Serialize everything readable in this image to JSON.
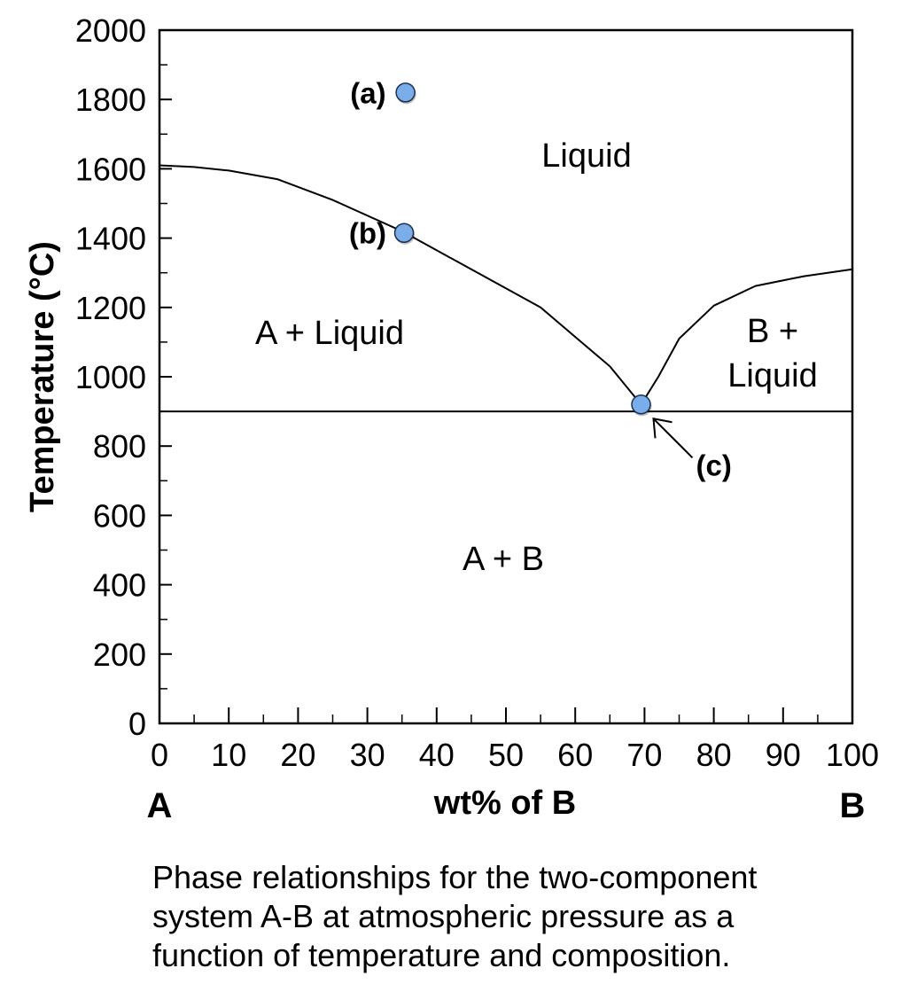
{
  "chart_data": {
    "type": "line",
    "xlabel": "wt% of B",
    "ylabel": "Temperature (°C)",
    "xlim": [
      0,
      100
    ],
    "ylim": [
      0,
      2000
    ],
    "x_ticks": [
      0,
      10,
      20,
      30,
      40,
      50,
      60,
      70,
      80,
      90,
      100
    ],
    "y_ticks": [
      0,
      200,
      400,
      600,
      800,
      1000,
      1200,
      1400,
      1600,
      1800,
      2000
    ],
    "x_minor_step": 5,
    "y_minor_step": 100,
    "end_labels": {
      "left": "A",
      "right": "B"
    },
    "series": [
      {
        "values": [
          [
            0,
            1610
          ],
          [
            5,
            1605
          ],
          [
            10,
            1595
          ],
          [
            17,
            1570
          ],
          [
            25,
            1510
          ],
          [
            35,
            1420
          ],
          [
            45,
            1310
          ],
          [
            55,
            1200
          ],
          [
            65,
            1030
          ],
          [
            69.5,
            920
          ]
        ]
      },
      {
        "values": [
          [
            69.5,
            920
          ],
          [
            72,
            1000
          ],
          [
            75,
            1110
          ],
          [
            80,
            1205
          ],
          [
            86,
            1262
          ],
          [
            93,
            1290
          ],
          [
            100,
            1310
          ]
        ]
      },
      {
        "values": [
          [
            0,
            900
          ],
          [
            100,
            900
          ]
        ]
      }
    ],
    "points": [
      {
        "label": "(a)",
        "x": 35.5,
        "y": 1820
      },
      {
        "label": "(b)",
        "x": 35.3,
        "y": 1415
      },
      {
        "label": "(c)",
        "x": 69.5,
        "y": 920
      }
    ],
    "regions": [
      {
        "lines": [
          "Liquid"
        ]
      },
      {
        "lines": [
          "A + Liquid"
        ]
      },
      {
        "lines": [
          "B +",
          "Liquid"
        ]
      },
      {
        "lines": [
          "A + B"
        ]
      }
    ],
    "point_color": "#7aaeea",
    "grid": false
  },
  "caption": [
    "Phase relationships for the two-component",
    "system A-B at atmospheric pressure as a",
    "function of temperature and composition."
  ]
}
